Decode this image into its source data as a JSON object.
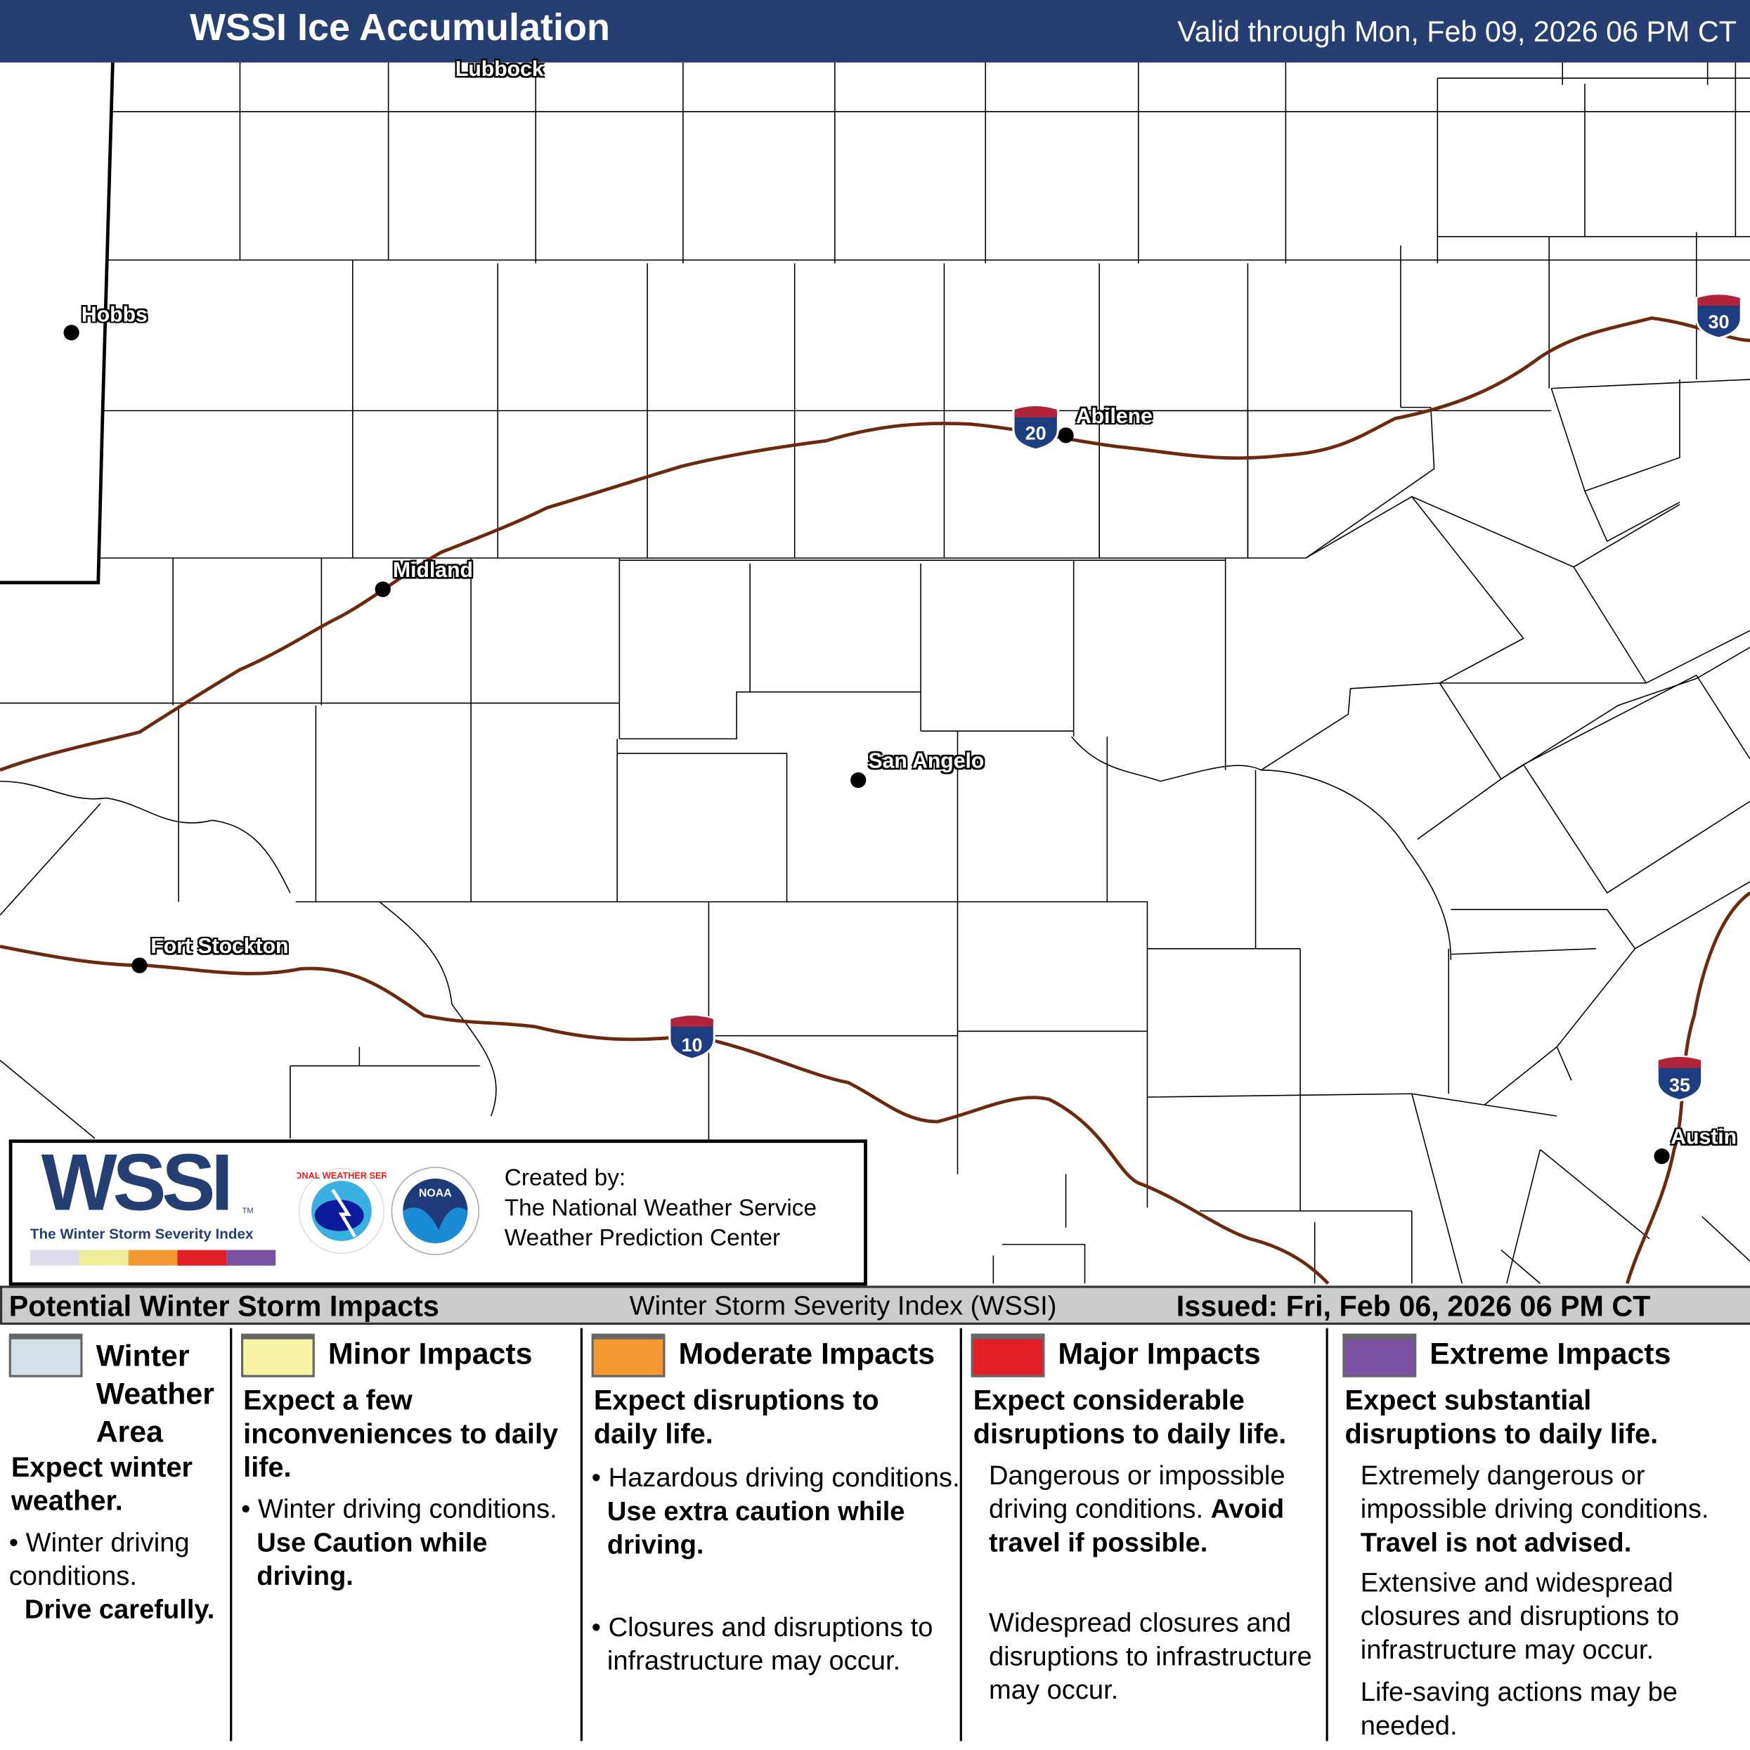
{
  "header": {
    "title": "WSSI Ice Accumulation",
    "valid": "Valid through Mon, Feb 09, 2026 06 PM CT"
  },
  "colors": {
    "header": "#263f73",
    "interstate": "#6b2a0e",
    "winter_weather_area": "#d3e0e8",
    "minor": "#f8f4a6",
    "moderate": "#f59a33",
    "major": "#e31f26",
    "extreme": "#7b52a1"
  },
  "map": {
    "cities": [
      "Lubbock",
      "Hobbs",
      "Abilene",
      "Midland",
      "San Angelo",
      "Fort Stockton",
      "Austin"
    ],
    "interstates": [
      "20",
      "30",
      "10",
      "35"
    ]
  },
  "logo": {
    "wssi": "WSSI",
    "tm": "TM",
    "subtitle": "The Winter Storm Severity Index",
    "created_by": "Created by:",
    "org1": "The National Weather Service",
    "org2": "Weather Prediction Center",
    "nws_text": "NATIONAL WEATHER SERVICE",
    "noaa_text": "NOAA"
  },
  "bar": {
    "left": "Potential Winter Storm Impacts",
    "center": "Winter Storm Severity Index (WSSI)",
    "right": "Issued: Fri, Feb 06, 2026 06 PM CT"
  },
  "legend": [
    {
      "title": "Winter Weather Area",
      "summary": "Expect winter weather.",
      "bullet1": "Winter driving conditions.",
      "bullet1_bold": "Drive carefully."
    },
    {
      "title": "Minor Impacts",
      "summary": "Expect a few inconveniences to daily life.",
      "bullet1": "Winter driving conditions.",
      "bullet1_bold": "Use Caution while driving."
    },
    {
      "title": "Moderate Impacts",
      "summary": "Expect disruptions to daily life.",
      "bullet1": "Hazardous driving conditions.",
      "bullet1_bold": "Use extra caution while driving.",
      "bullet2": "Closures and disruptions to infrastructure may occur."
    },
    {
      "title": "Major Impacts",
      "summary": "Expect considerable disruptions to daily life.",
      "p1": "Dangerous or impossible driving conditions.",
      "p1_bold": "Avoid travel if possible.",
      "p2": "Widespread closures and disruptions to infrastructure may occur."
    },
    {
      "title": "Extreme Impacts",
      "summary": "Expect substantial disruptions to daily life.",
      "p1": "Extremely dangerous or impossible driving conditions.",
      "p1_bold": "Travel is not advised.",
      "p2": "Extensive and widespread closures and disruptions to infrastructure may occur.",
      "p3": "Life-saving actions may be needed."
    }
  ]
}
